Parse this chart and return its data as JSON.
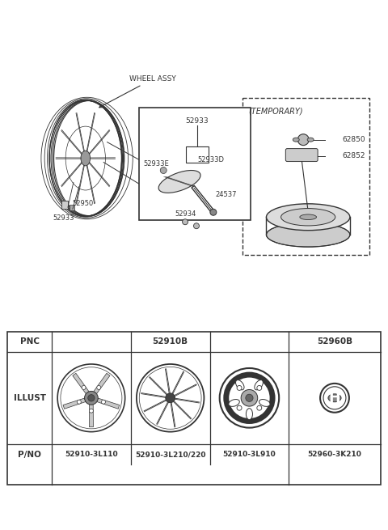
{
  "bg_color": "#ffffff",
  "line_color": "#333333",
  "table_header": [
    "PNC",
    "52910B",
    "52960B"
  ],
  "table_illust": "ILLUST",
  "table_pno_label": "P/NO",
  "table_pno_values": [
    "52910-3L110",
    "52910-3L210/220",
    "52910-3L910",
    "52960-3K210"
  ],
  "labels": {
    "wheel_assy": "WHEEL ASSY",
    "52933_top": "52933",
    "52933E": "52933E",
    "52933D": "52933D",
    "24537": "24537",
    "52934": "52934",
    "52950": "52950",
    "52933_btm": "52933",
    "temporary": "(TEMPORARY)",
    "62850": "62850",
    "62852": "62852"
  }
}
